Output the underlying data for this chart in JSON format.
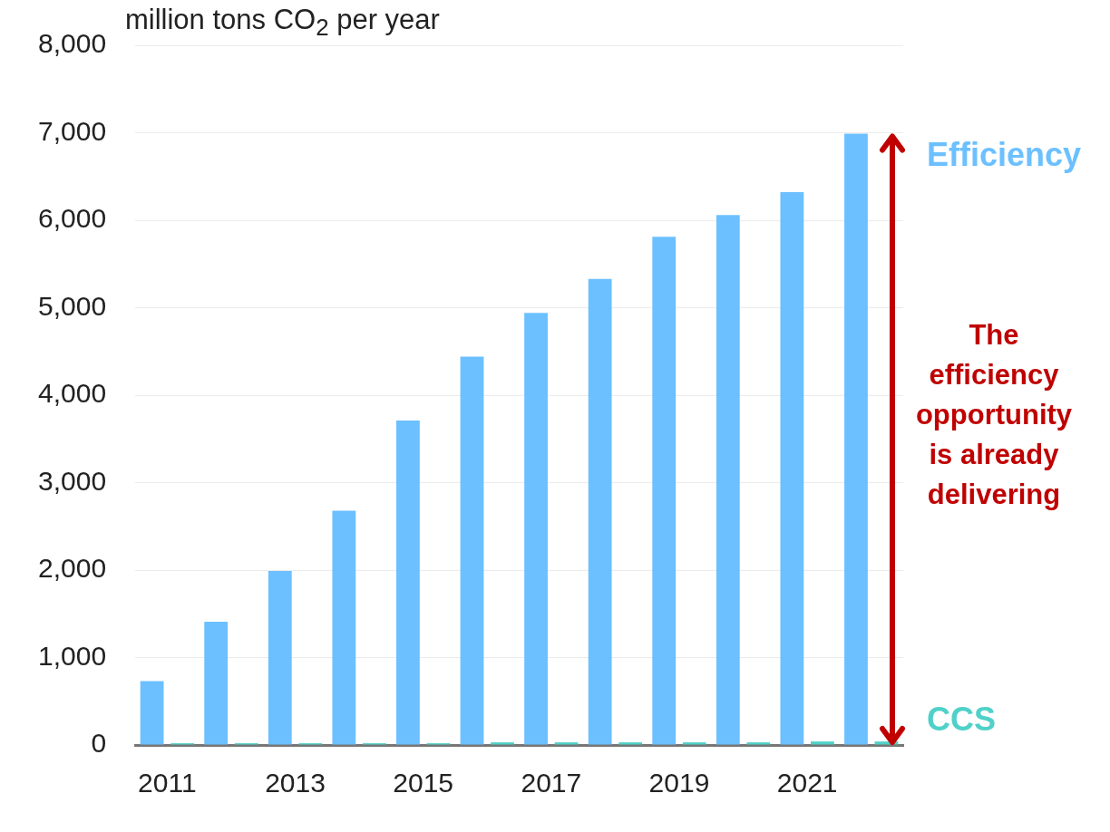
{
  "chart_data": {
    "type": "bar",
    "ylabel": "million tons CO$_{2}$ per year",
    "categories": [
      "2011",
      null,
      "2013",
      null,
      "2015",
      null,
      "2017",
      null,
      "2019",
      null,
      "2021",
      null
    ],
    "series": [
      {
        "name": "Efficiency",
        "color": "#6cc0ff",
        "values": [
          730,
          1410,
          1990,
          2680,
          3710,
          4440,
          4940,
          5330,
          5810,
          6060,
          6320,
          6990
        ]
      },
      {
        "name": "CCS",
        "color": "#4fd1c9",
        "values": [
          20,
          20,
          20,
          20,
          20,
          30,
          30,
          30,
          30,
          30,
          40,
          40
        ]
      }
    ],
    "ylim": [
      0,
      8000
    ],
    "yticks": [
      {
        "value": 0,
        "label": "0"
      },
      {
        "value": 1000,
        "label": "1,000"
      },
      {
        "value": 2000,
        "label": "2,000"
      },
      {
        "value": 3000,
        "label": "3,000"
      },
      {
        "value": 4000,
        "label": "4,000"
      },
      {
        "value": 5000,
        "label": "5,000"
      },
      {
        "value": 6000,
        "label": "6,000"
      },
      {
        "value": 7000,
        "label": "7,000"
      },
      {
        "value": 8000,
        "label": "8,000"
      }
    ],
    "grid": "y",
    "legend": false,
    "annotations": [
      "The efficiency opportunity is already delivering"
    ]
  }
}
